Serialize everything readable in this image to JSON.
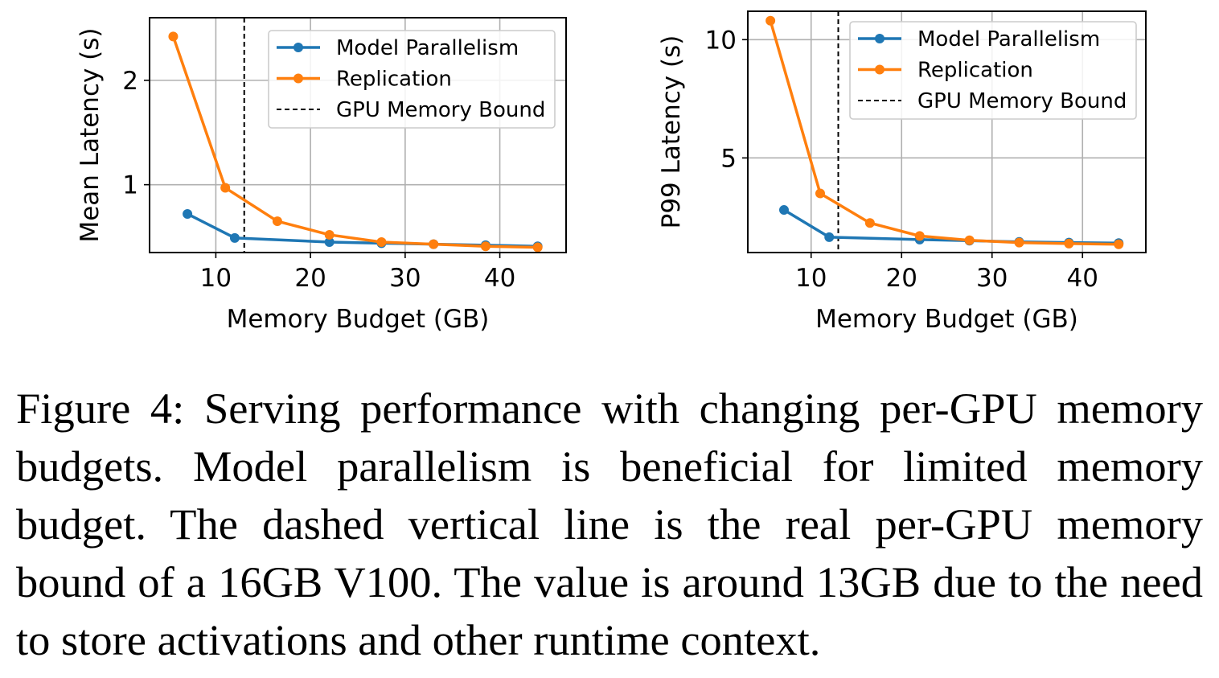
{
  "chart_data": [
    {
      "type": "line",
      "xlabel": "Memory Budget (GB)",
      "ylabel": "Mean Latency (s)",
      "xlim": [
        3.0,
        47.0
      ],
      "ylim": [
        0.35,
        2.6
      ],
      "xticks": [
        10,
        20,
        30,
        40
      ],
      "xtick_labels": [
        "10",
        "20",
        "30",
        "40"
      ],
      "yticks": [
        1,
        2
      ],
      "ytick_labels": [
        "1",
        "2"
      ],
      "grid": true,
      "legend_position": "top-right",
      "vline": {
        "x": 13,
        "label": "GPU Memory Bound",
        "style": "dashed",
        "color": "#000000"
      },
      "series": [
        {
          "name": "Model Parallelism",
          "color": "#1f77b4",
          "x": [
            7,
            12,
            22,
            27.5,
            33,
            38.5,
            44
          ],
          "y": [
            0.72,
            0.49,
            0.45,
            0.44,
            0.43,
            0.42,
            0.41
          ]
        },
        {
          "name": "Replication",
          "color": "#ff7f0e",
          "x": [
            5.5,
            11,
            16.5,
            22,
            27.5,
            33,
            38.5,
            44
          ],
          "y": [
            2.42,
            0.97,
            0.65,
            0.52,
            0.45,
            0.43,
            0.41,
            0.4
          ]
        }
      ]
    },
    {
      "type": "line",
      "xlabel": "Memory Budget (GB)",
      "ylabel": "P99 Latency (s)",
      "xlim": [
        3.0,
        47.0
      ],
      "ylim": [
        1.0,
        11.2
      ],
      "xticks": [
        10,
        20,
        30,
        40
      ],
      "xtick_labels": [
        "10",
        "20",
        "30",
        "40"
      ],
      "yticks": [
        5,
        10
      ],
      "ytick_labels": [
        "5",
        "10"
      ],
      "grid": true,
      "legend_position": "top-right",
      "vline": {
        "x": 13,
        "label": "GPU Memory Bound",
        "style": "dashed",
        "color": "#000000"
      },
      "series": [
        {
          "name": "Model Parallelism",
          "color": "#1f77b4",
          "x": [
            7,
            12,
            22,
            27.5,
            33,
            38.5,
            44
          ],
          "y": [
            2.8,
            1.65,
            1.55,
            1.5,
            1.45,
            1.42,
            1.4
          ]
        },
        {
          "name": "Replication",
          "color": "#ff7f0e",
          "x": [
            5.5,
            11,
            16.5,
            22,
            27.5,
            33,
            38.5,
            44
          ],
          "y": [
            10.8,
            3.5,
            2.25,
            1.7,
            1.52,
            1.42,
            1.38,
            1.35
          ]
        }
      ]
    }
  ],
  "caption": "Figure 4: Serving performance with changing per-GPU memory budgets. Model parallelism is beneficial for limited memory budget. The dashed vertical line is the real per-GPU memory bound of a 16GB V100. The value is around 13GB due to the need to store activations and other runtime context."
}
